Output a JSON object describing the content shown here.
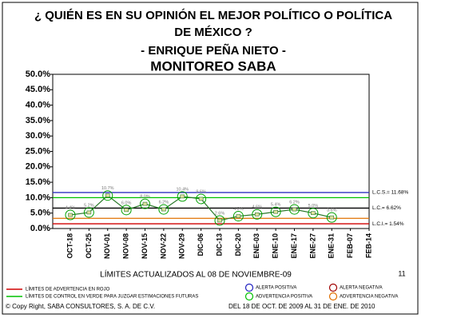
{
  "chart_data": {
    "type": "control",
    "title": "¿ QUIÉN ES EN SU OPINIÓN EL MEJOR POLÍTICO O POLÍTICA",
    "title_line2": "DE MÉXICO ?",
    "subtitle": "- ENRIQUE PEÑA NIETO -",
    "heading": "MONITOREO SABA",
    "x_note": "LÍMITES ACTUALIZADOS AL 08 DE NOVIEMBRE-09",
    "page_number": "11",
    "categories": [
      "OCT-18",
      "OCT-25",
      "NOV-01",
      "NOV-08",
      "NOV-15",
      "NOV-22",
      "NOV-29",
      "DIC-06",
      "DIC-13",
      "DIC-20",
      "ENE-03",
      "ENE-10",
      "ENE-17",
      "ENE-27",
      "ENE-31",
      "FEB-07",
      "FEB-14"
    ],
    "series": [
      {
        "name": "ADVERTENCIA POSITIVA",
        "color": "#00a000",
        "values": [
          4.4,
          5.2,
          10.7,
          6.0,
          8.0,
          6.2,
          10.4,
          9.6,
          2.6,
          4.0,
          4.6,
          5.4,
          6.2,
          5.0,
          3.6,
          null,
          null
        ],
        "value_labels": [
          "4.4%",
          "5.2%",
          "10.7%",
          "6.0%",
          "8.0%",
          "6.2%",
          "10.4%",
          "9.6%",
          "2.6%",
          "4.0%",
          "4.6%",
          "5.4%",
          "6.2%",
          "5.0%",
          "3.6%",
          null,
          null
        ]
      }
    ],
    "ylim": [
      0,
      50
    ],
    "yticks": [
      {
        "value": 0,
        "label": "0.0%"
      },
      {
        "value": 5,
        "label": "5.0%"
      },
      {
        "value": 10,
        "label": "10.0%"
      },
      {
        "value": 15,
        "label": "15.0%"
      },
      {
        "value": 20,
        "label": "20.0%"
      },
      {
        "value": 25,
        "label": "25.0%"
      },
      {
        "value": 30,
        "label": "30.0%"
      },
      {
        "value": 35,
        "label": "35.0%"
      },
      {
        "value": 40,
        "label": "40.0%"
      },
      {
        "value": 45,
        "label": "45.0%"
      },
      {
        "value": 50,
        "label": "50.0%"
      }
    ],
    "control_lines": [
      {
        "value": 11.68,
        "label": "L.C.S.= 11.68%",
        "color": "#3030c0"
      },
      {
        "value": 10.0,
        "color": "#00c000"
      },
      {
        "value": 6.62,
        "label": "L.C.= 6.62%",
        "color": "#000000"
      },
      {
        "value": 3.3,
        "color": "#e07000"
      },
      {
        "value": 1.54,
        "label": "L.C.I.= 1.54%",
        "color": "#d00000"
      }
    ],
    "legend_lines": [
      {
        "label": "LÍMITES DE ADVERTENCIA EN ROJO",
        "color": "#d00000"
      },
      {
        "label": "LÍMITES DE CONTROL EN VERDE PARA JUZGAR ESTIMACIONES FUTURAS",
        "color": "#00c000"
      }
    ],
    "legend_markers": [
      {
        "label": "ALERTA POSITIVA",
        "color": "#2020c0"
      },
      {
        "label": "ALERTA NEGATIVA",
        "color": "#a00000"
      },
      {
        "label": "ADVERTENCIA POSITIVA",
        "color": "#00c000"
      },
      {
        "label": "ADVERTENCIA NEGATIVA",
        "color": "#e07000"
      }
    ],
    "copyright": "© Copy Right, SABA CONSULTORES, S. A. DE C.V.",
    "period": "DEL 18 DE OCT. DE 2009 AL 31 DE ENE. DE 2010"
  }
}
